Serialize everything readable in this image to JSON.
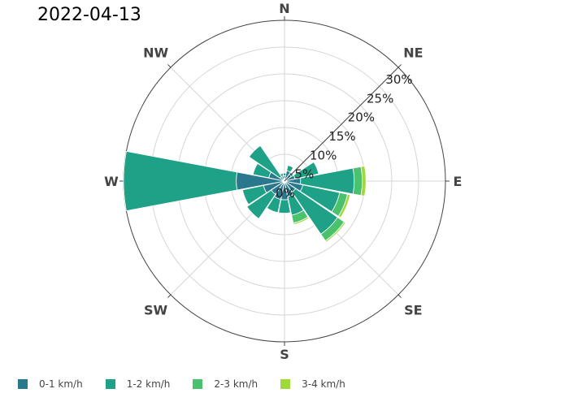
{
  "title": "2022-04-13",
  "chart_data": {
    "type": "barpolar",
    "title": "2022-04-13",
    "directions": [
      "N",
      "NNE",
      "NE",
      "ENE",
      "E",
      "ESE",
      "SE",
      "SSE",
      "S",
      "SSW",
      "SW",
      "WSW",
      "W",
      "WNW",
      "NW",
      "NNW"
    ],
    "compass_labels": [
      "N",
      "NE",
      "E",
      "SE",
      "S",
      "SW",
      "W",
      "NW"
    ],
    "radial_ticks": [
      "0%",
      "5%",
      "10%",
      "15%",
      "20%",
      "25%",
      "30%"
    ],
    "radial_tick_values": [
      0,
      5,
      10,
      15,
      20,
      25,
      30
    ],
    "radial_range": [
      0,
      30
    ],
    "series": [
      {
        "name": "0-1 km/h",
        "color": "#2a788e",
        "values": [
          1.0,
          2.0,
          1.5,
          2.0,
          3.0,
          3.5,
          2.5,
          3.0,
          3.5,
          3.5,
          3.0,
          4.0,
          9.0,
          3.0,
          1.0,
          1.0
        ]
      },
      {
        "name": "1-2 km/h",
        "color": "#1fa187",
        "values": [
          0.5,
          1.0,
          0.5,
          4.5,
          10.0,
          7.0,
          9.5,
          3.5,
          2.5,
          2.5,
          5.5,
          4.0,
          21.0,
          3.0,
          7.0,
          0.5
        ]
      },
      {
        "name": "2-3 km/h",
        "color": "#4ac16d",
        "values": [
          0,
          0,
          0,
          0,
          1.5,
          1.5,
          1.5,
          1.5,
          0,
          0,
          0,
          0,
          0,
          0,
          0,
          0
        ]
      },
      {
        "name": "3-4 km/h",
        "color": "#9fda3a",
        "values": [
          0,
          0,
          0,
          0,
          0.7,
          0.5,
          0.3,
          0.3,
          0,
          0,
          0,
          0,
          0,
          0,
          0,
          0
        ]
      }
    ],
    "legend_position": "bottom-left"
  }
}
